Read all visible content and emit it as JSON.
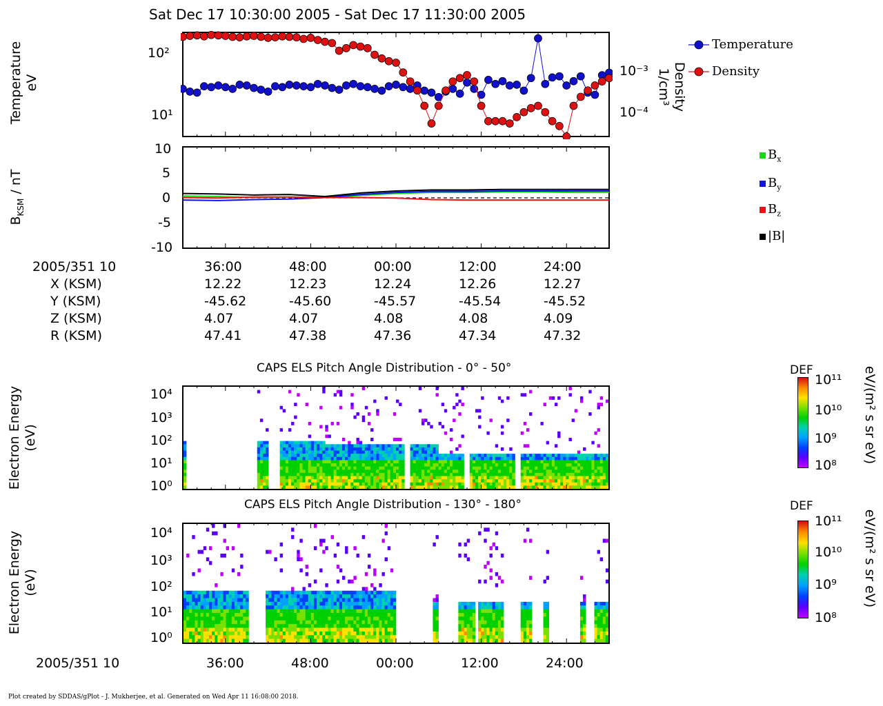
{
  "title": "Sat Dec 17 10:30:00 2005 - Sat Dec 17 11:30:00 2005",
  "footer": "Plot created by SDDAS/gPlot - J. Mukherjee, et al.  Generated on Wed Apr 11 16:08:00 2018.",
  "colors": {
    "temperature": "#1010cc",
    "density": "#dd1111",
    "bx": "#11dd11",
    "by": "#1111ee",
    "bz": "#ee1111",
    "bmag": "#000000"
  },
  "panel1": {
    "ylabel_line1": "Temperature",
    "ylabel_line2": "eV",
    "yticks": [
      "10²",
      "10¹"
    ],
    "right_label_line1": "Density",
    "right_label_line2": "1/cm³",
    "right_ticks": [
      "10⁻³",
      "10⁻⁴"
    ],
    "legend": [
      "Temperature",
      "Density"
    ]
  },
  "panel2": {
    "ylabel_main": "B",
    "ylabel_sub": "KSM",
    "ylabel_rest": " / nT",
    "yticks": [
      "10",
      "5",
      "0",
      "-5",
      "-10"
    ],
    "legend": [
      {
        "main": "B",
        "sub": "x"
      },
      {
        "main": "B",
        "sub": "y"
      },
      {
        "main": "B",
        "sub": "z"
      },
      {
        "main": "|B|",
        "sub": ""
      }
    ]
  },
  "ephemeris": {
    "row_labels": [
      "2005/351 10",
      "X (KSM)",
      "Y (KSM)",
      "Z (KSM)",
      "R (KSM)"
    ],
    "times": [
      "36:00",
      "48:00",
      "00:00",
      "12:00",
      "24:00"
    ],
    "x": [
      "12.22",
      "12.23",
      "12.24",
      "12.26",
      "12.27"
    ],
    "y": [
      "-45.62",
      "-45.60",
      "-45.57",
      "-45.54",
      "-45.52"
    ],
    "z": [
      "4.07",
      "4.07",
      "4.08",
      "4.08",
      "4.09"
    ],
    "r": [
      "47.41",
      "47.38",
      "47.36",
      "47.34",
      "47.32"
    ]
  },
  "spec1": {
    "title": "CAPS ELS Pitch Angle Distribution - 0° - 50°",
    "ylabel_line1": "Electron Energy",
    "ylabel_line2": "(eV)",
    "yticks": [
      "10⁴",
      "10³",
      "10²",
      "10¹",
      "10⁰"
    ],
    "cbar_title": "DEF",
    "cbar_ticks": [
      "10¹¹",
      "10¹⁰",
      "10⁹",
      "10⁸"
    ],
    "cbar_units": "eV/(m² s sr eV)"
  },
  "spec2": {
    "title": "CAPS ELS Pitch Angle Distribution - 130° - 180°",
    "ylabel_line1": "Electron Energy",
    "ylabel_line2": "(eV)",
    "yticks": [
      "10⁴",
      "10³",
      "10²",
      "10¹",
      "10⁰"
    ],
    "cbar_title": "DEF",
    "cbar_ticks": [
      "10¹¹",
      "10¹⁰",
      "10⁹",
      "10⁸"
    ],
    "cbar_units": "eV/(m² s sr eV)"
  },
  "bottom_axis": {
    "date_label": "2005/351 10",
    "times": [
      "36:00",
      "48:00",
      "00:00",
      "12:00",
      "24:00"
    ]
  },
  "chart_data": [
    {
      "type": "line",
      "title": "",
      "xlabel": "",
      "ylabel": "Temperature eV",
      "ylabel_right": "Density 1/cm³",
      "ylog": true,
      "xlim_minutes_after_1030": [
        0,
        60
      ],
      "ylim": [
        5,
        250
      ],
      "ylim_right": [
        5e-05,
        0.0055
      ],
      "legend_position": "right",
      "series": [
        {
          "name": "Temperature",
          "axis": "left",
          "x": [
            0,
            1,
            2,
            3,
            4,
            5,
            6,
            7,
            8,
            9,
            10,
            11,
            12,
            13,
            14,
            15,
            16,
            17,
            18,
            19,
            20,
            21,
            22,
            23,
            24,
            25,
            26,
            27,
            28,
            29,
            30,
            31,
            32,
            33,
            34,
            35,
            36,
            37,
            38,
            39,
            40,
            41,
            42,
            43,
            44,
            45,
            46,
            47,
            48,
            49,
            50,
            51,
            52,
            53,
            54,
            55,
            56,
            57,
            58,
            59,
            60
          ],
          "y": [
            30,
            27,
            26,
            33,
            32,
            34,
            32,
            30,
            35,
            34,
            31,
            29,
            27,
            33,
            32,
            35,
            34,
            33,
            32,
            36,
            34,
            31,
            29,
            34,
            36,
            33,
            32,
            30,
            28,
            33,
            35,
            32,
            30,
            34,
            28,
            26,
            22,
            27,
            30,
            25,
            38,
            30,
            24,
            42,
            36,
            40,
            34,
            35,
            28,
            45,
            200,
            36,
            46,
            48,
            34,
            40,
            48,
            26,
            24,
            50,
            55
          ],
          "y_extra_note": ""
        },
        {
          "name": "Density",
          "axis": "right",
          "x": [
            0,
            1,
            2,
            3,
            4,
            5,
            6,
            7,
            8,
            9,
            10,
            11,
            12,
            13,
            14,
            15,
            16,
            17,
            18,
            19,
            20,
            21,
            22,
            23,
            24,
            25,
            26,
            27,
            28,
            29,
            30,
            31,
            32,
            33,
            34,
            35,
            36,
            37,
            38,
            39,
            40,
            41,
            42,
            43,
            44,
            45,
            46,
            47,
            48,
            49,
            50,
            51,
            52,
            53,
            54,
            55,
            56,
            57,
            58,
            59,
            60
          ],
          "y": [
            0.0045,
            0.0047,
            0.0048,
            0.0046,
            0.0049,
            0.0048,
            0.0047,
            0.0045,
            0.0044,
            0.0046,
            0.0047,
            0.0045,
            0.0043,
            0.0044,
            0.0046,
            0.0045,
            0.0044,
            0.0041,
            0.0043,
            0.0039,
            0.0036,
            0.0034,
            0.0024,
            0.0027,
            0.0031,
            0.0029,
            0.0027,
            0.002,
            0.0017,
            0.0015,
            0.0014,
            0.0009,
            0.0006,
            0.0004,
            0.0002,
            9e-05,
            0.0002,
            0.0004,
            0.0006,
            0.0007,
            0.0008,
            0.0006,
            0.0002,
            0.0001,
            0.0001,
            0.0001,
            9e-05,
            0.00012,
            0.00015,
            0.00018,
            0.0002,
            0.00015,
            0.0001,
            8e-05,
            5e-05,
            0.0002,
            0.0003,
            0.0004,
            0.0005,
            0.0006,
            0.0007
          ]
        }
      ]
    },
    {
      "type": "line",
      "title": "",
      "xlabel": "",
      "ylabel": "B_KSM / nT",
      "ylim": [
        -10,
        10
      ],
      "legend_position": "right",
      "x": [
        0,
        5,
        10,
        15,
        20,
        25,
        30,
        35,
        40,
        45,
        50,
        55,
        60
      ],
      "series": [
        {
          "name": "Bx",
          "values": [
            0.3,
            0.2,
            0.0,
            0.1,
            0.0,
            0.4,
            0.8,
            1.0,
            1.0,
            1.1,
            1.1,
            1.0,
            1.0
          ]
        },
        {
          "name": "By",
          "values": [
            -0.5,
            -0.6,
            -0.4,
            -0.3,
            0.0,
            0.6,
            1.0,
            1.2,
            1.2,
            1.3,
            1.3,
            1.3,
            1.3
          ]
        },
        {
          "name": "Bz",
          "values": [
            0.0,
            -0.1,
            0.1,
            0.1,
            0.0,
            0.0,
            -0.1,
            -0.4,
            -0.5,
            -0.5,
            -0.5,
            -0.5,
            -0.5
          ]
        },
        {
          "name": "|B|",
          "values": [
            0.8,
            0.7,
            0.5,
            0.6,
            0.2,
            0.9,
            1.3,
            1.5,
            1.5,
            1.6,
            1.6,
            1.6,
            1.6
          ]
        }
      ]
    },
    {
      "type": "heatmap",
      "title": "CAPS ELS Pitch Angle Distribution - 0° - 50°",
      "ylabel": "Electron Energy (eV)",
      "ylog": true,
      "ylim": [
        0.6,
        30000
      ],
      "colorbar_label": "DEF eV/(m² s sr eV)",
      "colorbar_range": [
        100000000.0,
        100000000000.0
      ]
    },
    {
      "type": "heatmap",
      "title": "CAPS ELS Pitch Angle Distribution - 130° - 180°",
      "ylabel": "Electron Energy (eV)",
      "ylog": true,
      "ylim": [
        0.6,
        30000
      ],
      "colorbar_label": "DEF eV/(m² s sr eV)",
      "colorbar_range": [
        100000000.0,
        100000000000.0
      ]
    }
  ]
}
